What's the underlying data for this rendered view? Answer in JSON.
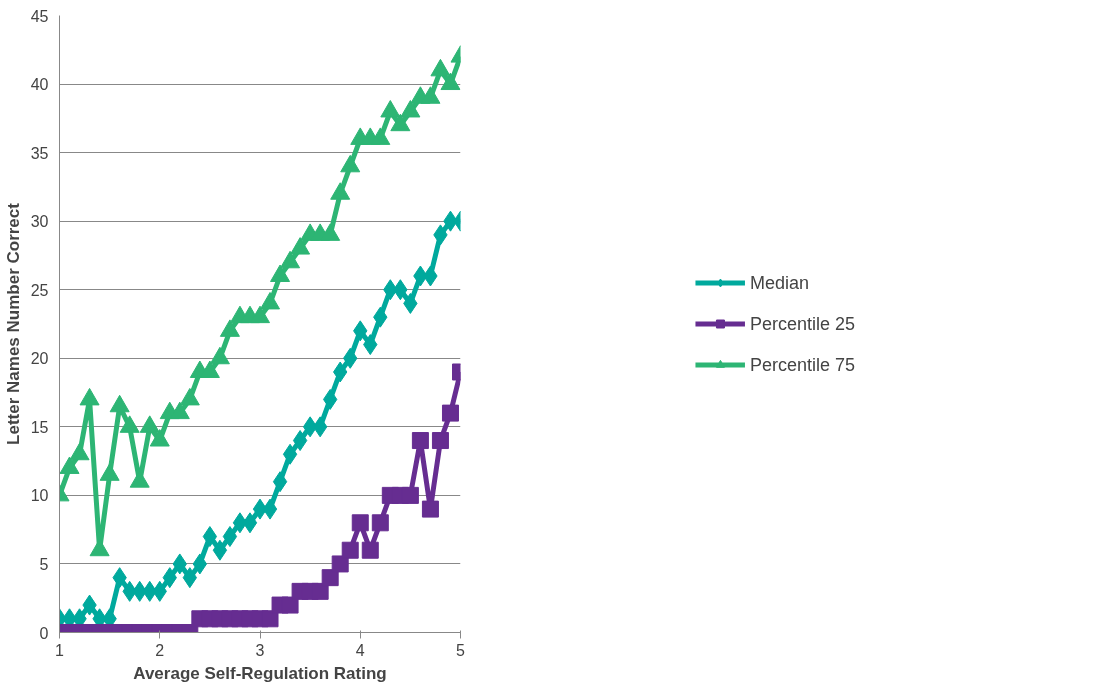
{
  "chart_data": {
    "type": "line",
    "xlabel": "Average Self-Regulation Rating",
    "ylabel": "Letter Names Number Correct",
    "x": [
      1.0,
      1.1,
      1.2,
      1.3,
      1.4,
      1.5,
      1.6,
      1.7,
      1.8,
      1.9,
      2.0,
      2.1,
      2.2,
      2.3,
      2.4,
      2.5,
      2.6,
      2.7,
      2.8,
      2.9,
      3.0,
      3.1,
      3.2,
      3.3,
      3.4,
      3.5,
      3.6,
      3.7,
      3.8,
      3.9,
      4.0,
      4.1,
      4.2,
      4.3,
      4.4,
      4.5,
      4.6,
      4.7,
      4.8,
      4.9,
      5.0
    ],
    "series": [
      {
        "name": "Median",
        "color": "#00a99d",
        "marker": "diamond",
        "values": [
          1,
          1,
          1,
          2,
          1,
          1,
          4,
          3,
          3,
          3,
          3,
          4,
          5,
          4,
          5,
          7,
          6,
          7,
          8,
          8,
          9,
          9,
          11,
          13,
          14,
          15,
          15,
          17,
          19,
          20,
          22,
          21,
          23,
          25,
          25,
          24,
          26,
          26,
          29,
          30,
          30
        ]
      },
      {
        "name": "Percentile 25",
        "color": "#662d91",
        "marker": "square",
        "values": [
          0,
          0,
          0,
          0,
          0,
          0,
          0,
          0,
          0,
          0,
          0,
          0,
          0,
          0,
          1,
          1,
          1,
          1,
          1,
          1,
          1,
          1,
          2,
          2,
          3,
          3,
          3,
          4,
          5,
          6,
          8,
          6,
          8,
          10,
          10,
          10,
          14,
          9,
          14,
          16,
          19
        ]
      },
      {
        "name": "Percentile 75",
        "color": "#2db574",
        "marker": "triangle",
        "values": [
          10,
          12,
          13,
          17,
          6,
          11.5,
          16.5,
          15,
          11,
          15,
          14,
          16,
          16,
          17,
          19,
          19,
          20,
          22,
          23,
          23,
          23,
          24,
          26,
          27,
          28,
          29,
          29,
          29,
          32,
          34,
          36,
          36,
          36,
          38,
          37,
          38,
          39,
          39,
          41,
          40,
          42
        ]
      }
    ],
    "xlim": [
      1,
      5
    ],
    "xticks": [
      1,
      2,
      3,
      4,
      5
    ],
    "ylim": [
      0,
      45
    ],
    "yticks": [
      0,
      5,
      10,
      15,
      20,
      25,
      30,
      35,
      40,
      45
    ],
    "grid": "y",
    "legend": "right",
    "line_style": "solid"
  }
}
